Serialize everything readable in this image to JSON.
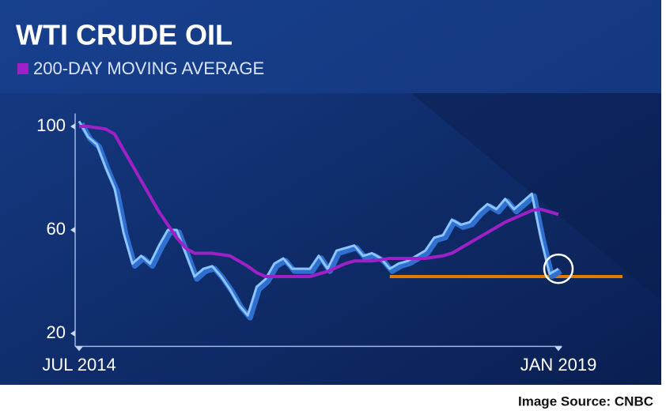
{
  "chart_data": {
    "type": "line",
    "title": "WTI CRUDE OIL",
    "subtitle": "200-DAY MOVING AVERAGE",
    "source": "Image Source: CNBC",
    "x": [
      "2014-07",
      "2014-08",
      "2014-09",
      "2014-10",
      "2014-11",
      "2014-12",
      "2015-01",
      "2015-02",
      "2015-03",
      "2015-04",
      "2015-05",
      "2015-06",
      "2015-07",
      "2015-08",
      "2015-09",
      "2015-10",
      "2015-11",
      "2015-12",
      "2016-01",
      "2016-02",
      "2016-03",
      "2016-04",
      "2016-05",
      "2016-06",
      "2016-07",
      "2016-08",
      "2016-09",
      "2016-10",
      "2016-11",
      "2016-12",
      "2017-01",
      "2017-02",
      "2017-03",
      "2017-04",
      "2017-05",
      "2017-06",
      "2017-07",
      "2017-08",
      "2017-09",
      "2017-10",
      "2017-11",
      "2017-12",
      "2018-01",
      "2018-02",
      "2018-03",
      "2018-04",
      "2018-05",
      "2018-06",
      "2018-07",
      "2018-08",
      "2018-09",
      "2018-10",
      "2018-11",
      "2018-12",
      "2019-01"
    ],
    "series": [
      {
        "color": "#8cc4ff",
        "values": [
          102,
          96,
          93,
          84,
          76,
          59,
          47,
          50,
          47,
          54,
          60,
          60,
          51,
          42,
          45,
          46,
          42,
          37,
          31,
          27,
          38,
          41,
          47,
          49,
          45,
          45,
          45,
          50,
          45,
          52,
          53,
          54,
          50,
          51,
          49,
          45,
          47,
          48,
          50,
          52,
          57,
          58,
          64,
          62,
          63,
          67,
          70,
          68,
          72,
          68,
          71,
          74,
          57,
          43,
          45
        ]
      },
      {
        "name": "200-DAY MOVING AVERAGE",
        "color": "#a020c8",
        "values": [
          100,
          100,
          99.5,
          99,
          97,
          91,
          85,
          79,
          73,
          67,
          62,
          57,
          53,
          51,
          51,
          51,
          50.5,
          50,
          48,
          46,
          43.5,
          42,
          42,
          42,
          42,
          42,
          42,
          43,
          44,
          45.5,
          47,
          48,
          48,
          48,
          48.5,
          49,
          49,
          49,
          49,
          49,
          49.5,
          50,
          51,
          53,
          55,
          57,
          59,
          61,
          63,
          64.5,
          66,
          67.5,
          68,
          67,
          66
        ]
      }
    ],
    "xticks": [
      {
        "value": "2014-07",
        "label": "JUL 2014"
      },
      {
        "value": "2019-01",
        "label": "JAN 2019"
      }
    ],
    "ylim": [
      15,
      105
    ],
    "yticks": [
      20,
      60,
      100
    ],
    "reference_line": {
      "value": 42,
      "color": "#e07b00"
    }
  }
}
